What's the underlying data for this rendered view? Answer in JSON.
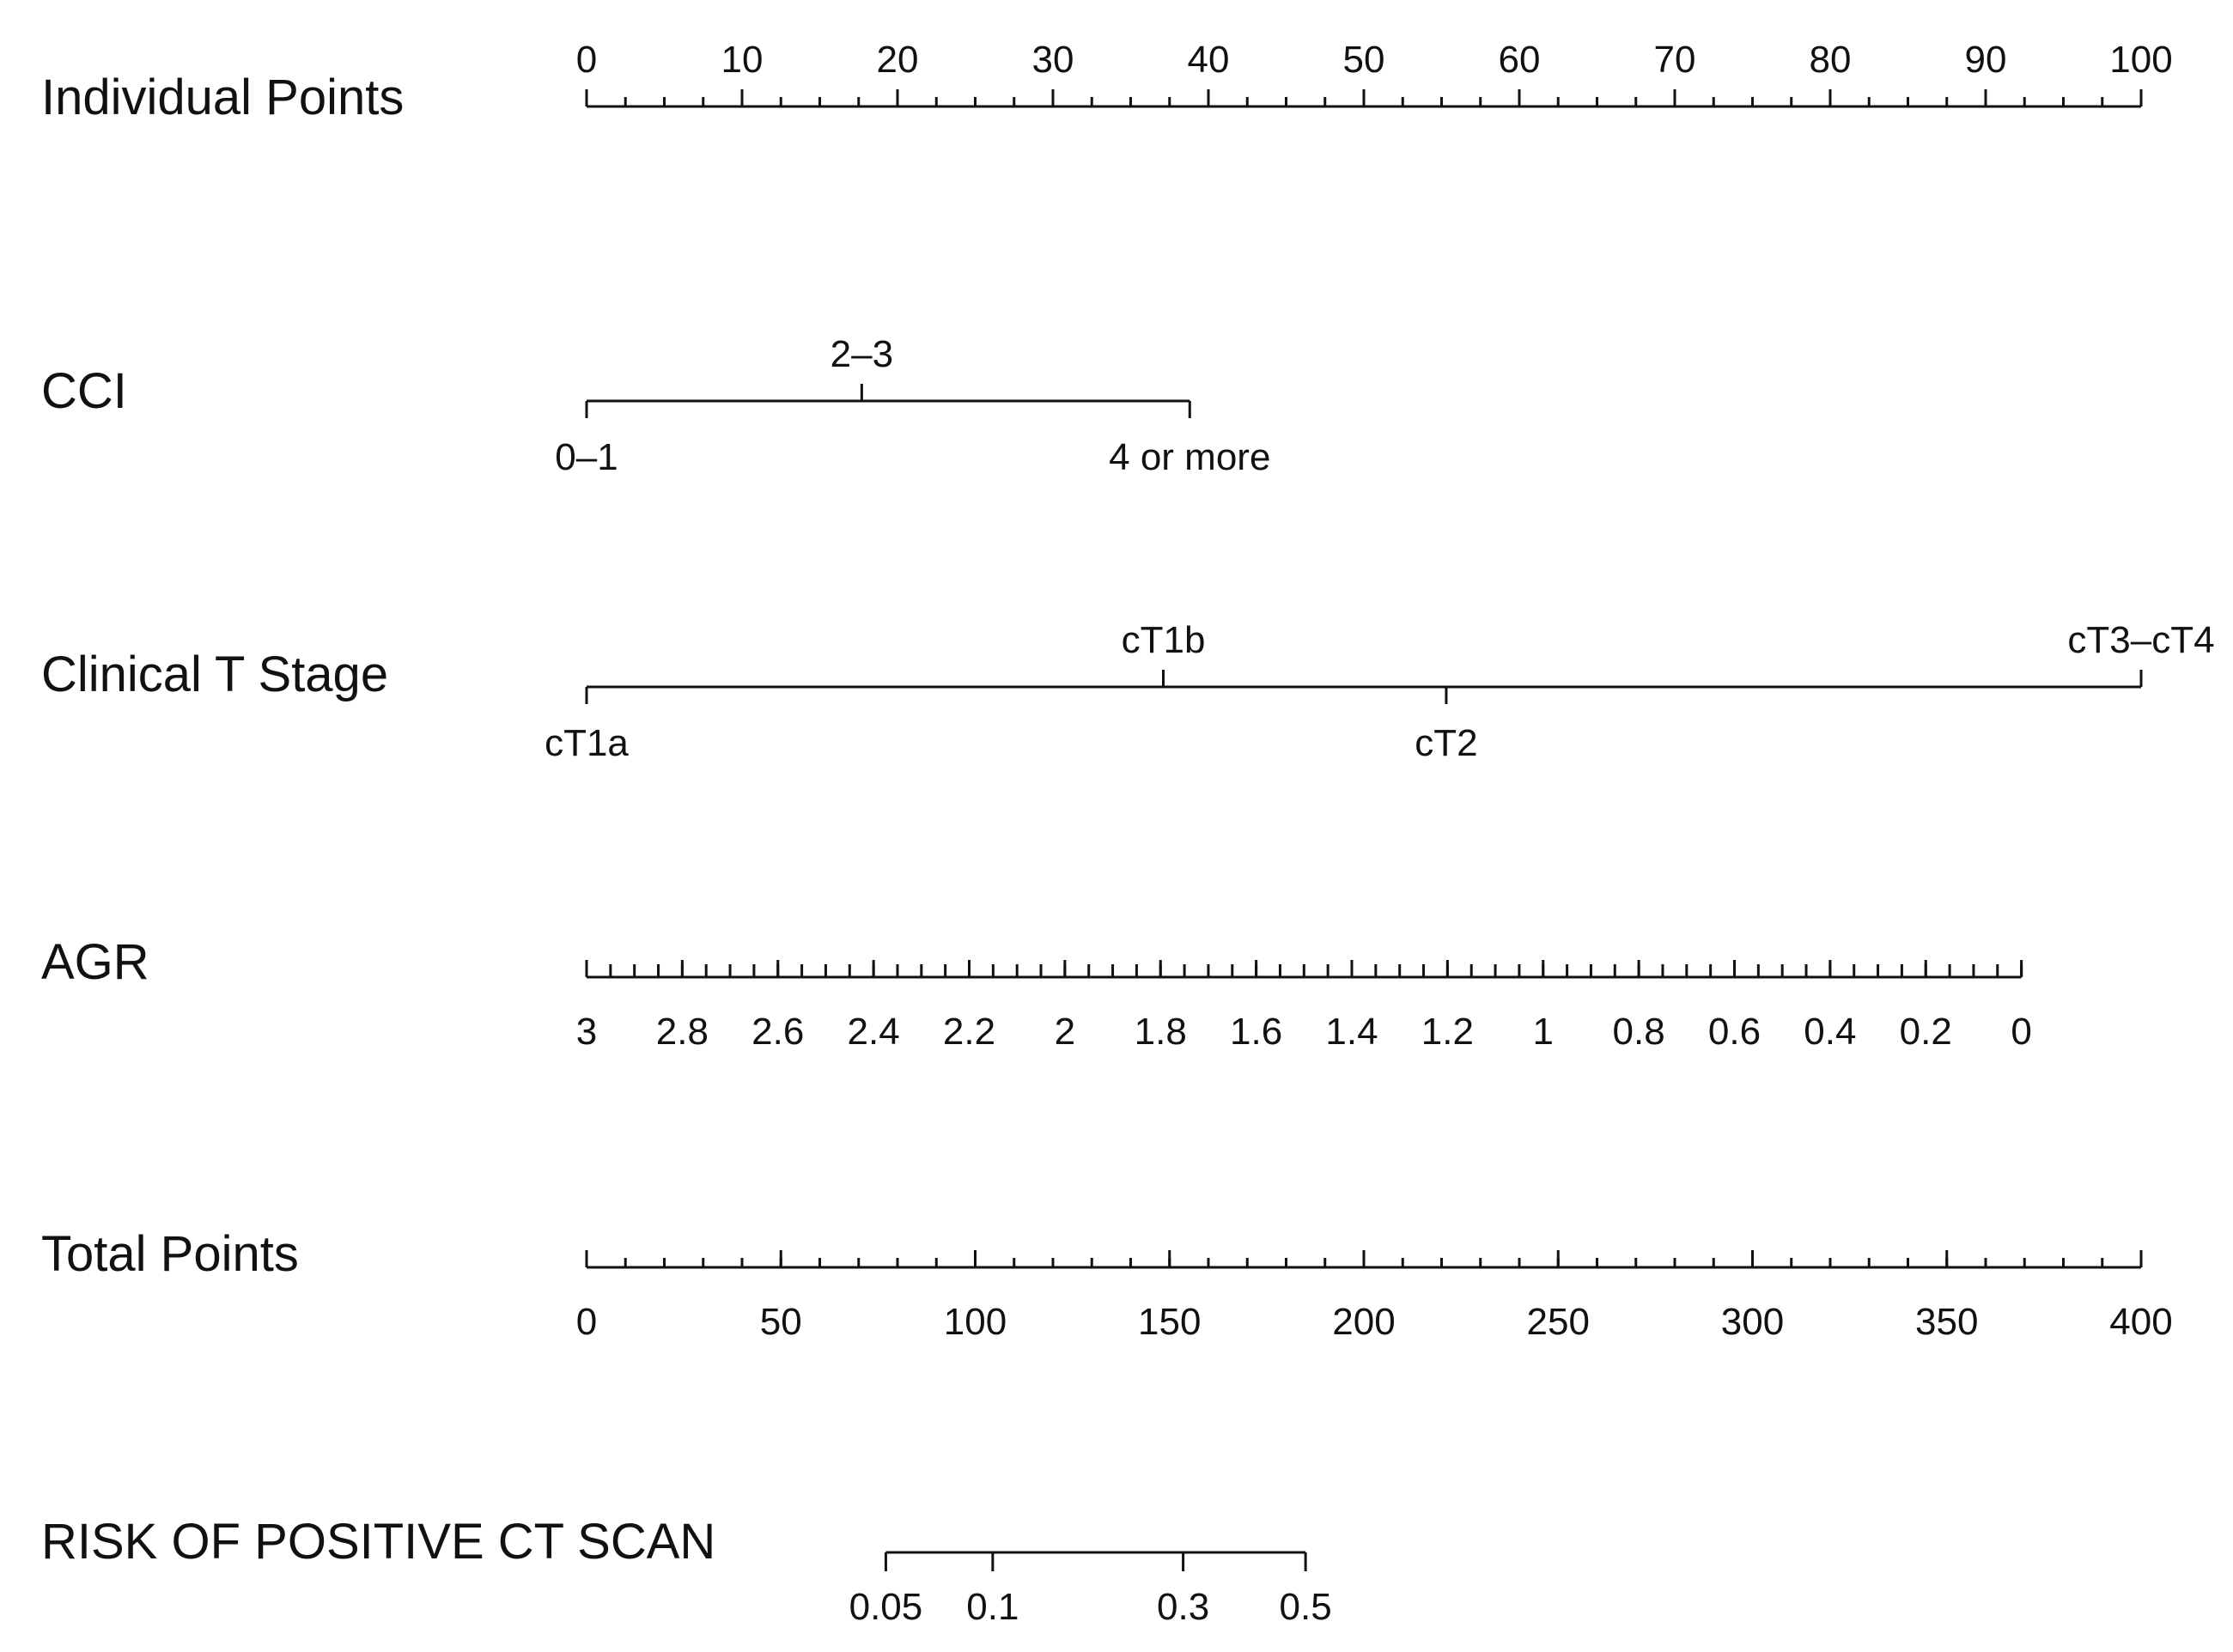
{
  "chart_data": {
    "type": "nomogram",
    "points_scale": {
      "min": 0,
      "max": 100
    },
    "rows": [
      {
        "id": "individual-points",
        "label": "Individual Points",
        "kind": "points",
        "range": [
          0,
          100
        ],
        "major_ticks": [
          {
            "label": "0",
            "points": 0
          },
          {
            "label": "10",
            "points": 10
          },
          {
            "label": "20",
            "points": 20
          },
          {
            "label": "30",
            "points": 30
          },
          {
            "label": "40",
            "points": 40
          },
          {
            "label": "50",
            "points": 50
          },
          {
            "label": "60",
            "points": 60
          },
          {
            "label": "70",
            "points": 70
          },
          {
            "label": "80",
            "points": 80
          },
          {
            "label": "90",
            "points": 90
          },
          {
            "label": "100",
            "points": 100
          }
        ],
        "minor_step": 2.5,
        "labels_above": true
      },
      {
        "id": "cci",
        "label": "CCI",
        "kind": "categorical",
        "categories": [
          {
            "label": "0–1",
            "points": 0,
            "side": "below"
          },
          {
            "label": "2–3",
            "points": 17.7,
            "side": "above"
          },
          {
            "label": "4 or more",
            "points": 38.8,
            "side": "below"
          }
        ]
      },
      {
        "id": "clinical-t-stage",
        "label": "Clinical T Stage",
        "kind": "categorical",
        "categories": [
          {
            "label": "cT1a",
            "points": 0,
            "side": "below"
          },
          {
            "label": "cT1b",
            "points": 37.1,
            "side": "above"
          },
          {
            "label": "cT2",
            "points": 55.3,
            "side": "below"
          },
          {
            "label": "cT3–cT4",
            "points": 100,
            "side": "above"
          }
        ]
      },
      {
        "id": "agr",
        "label": "AGR",
        "kind": "continuous",
        "value_range": [
          3,
          0
        ],
        "points_range": [
          0,
          92.3
        ],
        "tick_values": [
          3,
          2.8,
          2.6,
          2.4,
          2.2,
          2,
          1.8,
          1.6,
          1.4,
          1.2,
          1,
          0.8,
          0.6,
          0.4,
          0.2,
          0
        ],
        "tick_labels": [
          "3",
          "2.8",
          "2.6",
          "2.4",
          "2.2",
          "2",
          "1.8",
          "1.6",
          "1.4",
          "1.2",
          "1",
          "0.8",
          "0.6",
          "0.4",
          "0.2",
          "0"
        ],
        "minor_step": 0.05
      },
      {
        "id": "total-points",
        "label": "Total Points",
        "kind": "total",
        "value_range": [
          0,
          400
        ],
        "tick_values": [
          0,
          50,
          100,
          150,
          200,
          250,
          300,
          350,
          400
        ],
        "tick_labels": [
          "0",
          "50",
          "100",
          "150",
          "200",
          "250",
          "300",
          "350",
          "400"
        ],
        "minor_step": 10
      },
      {
        "id": "risk",
        "label": "RISK OF POSITIVE CT SCAN",
        "kind": "risk",
        "total_points_axis": [
          0,
          400
        ],
        "ticks": [
          {
            "label": "0.05",
            "value": 0.05,
            "total_points": 77
          },
          {
            "label": "0.1",
            "value": 0.1,
            "total_points": 104.5
          },
          {
            "label": "0.3",
            "value": 0.3,
            "total_points": 153.5
          },
          {
            "label": "0.5",
            "value": 0.5,
            "total_points": 185
          }
        ]
      }
    ]
  }
}
